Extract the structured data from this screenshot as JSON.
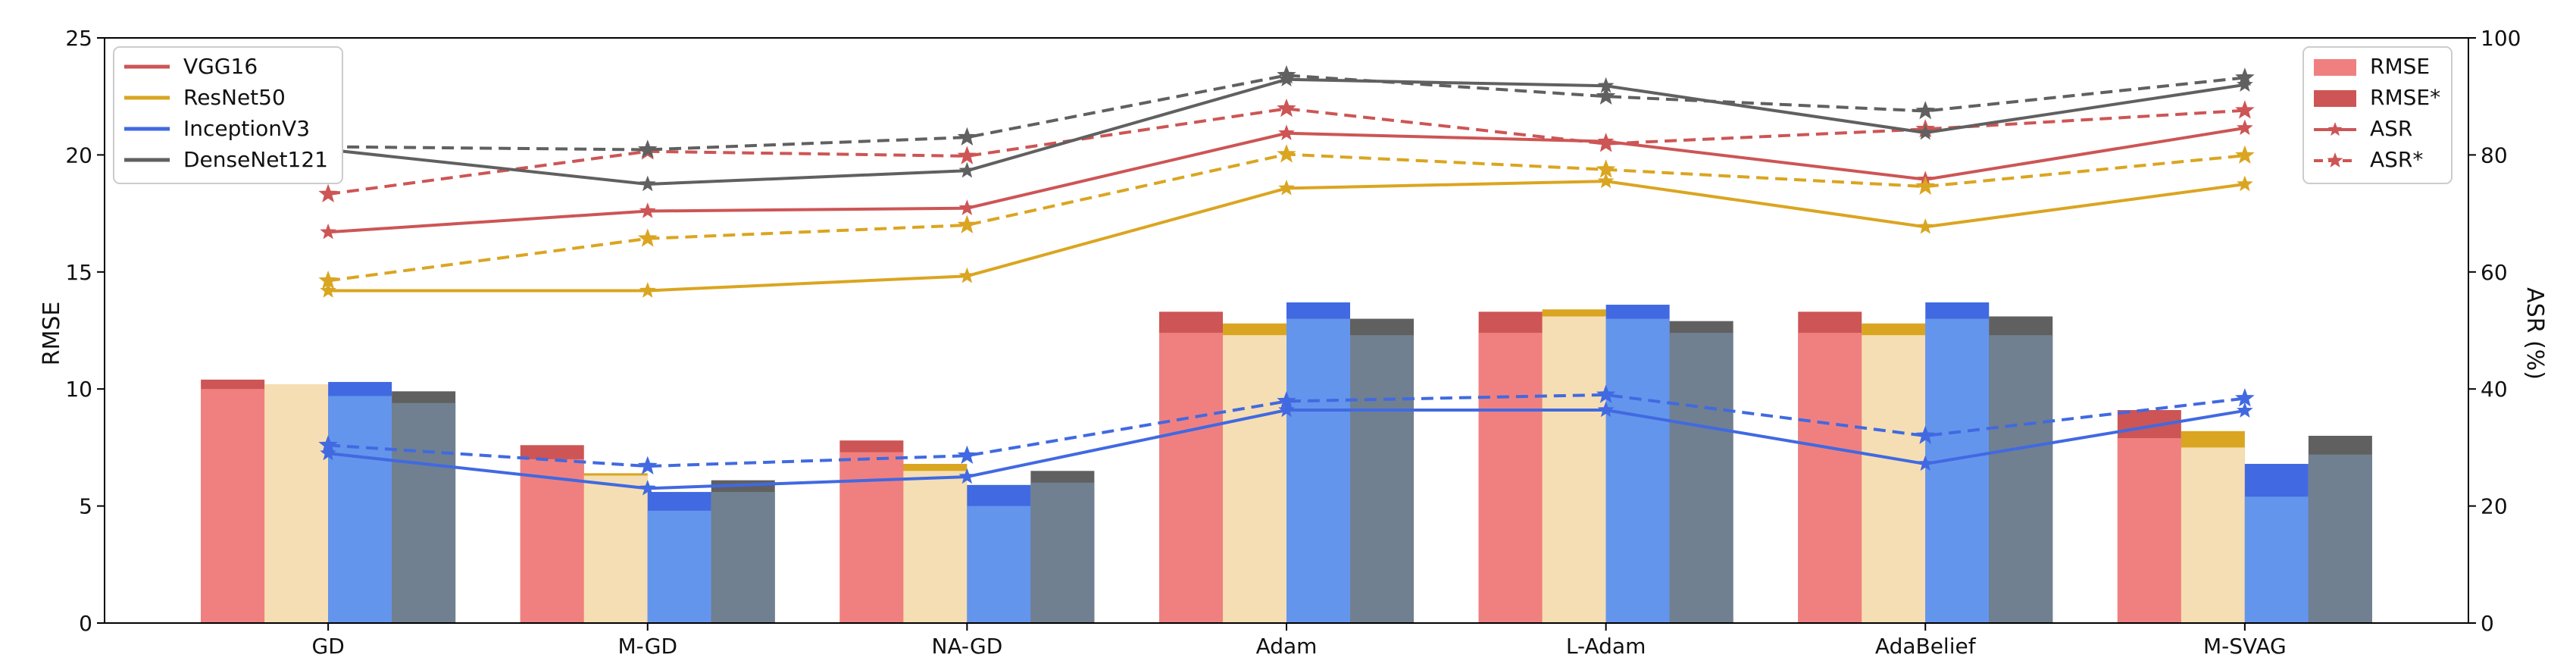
{
  "chart_data": {
    "type": "bar",
    "categories": [
      "GD",
      "M-GD",
      "NA-GD",
      "Adam",
      "L-Adam",
      "AdaBelief",
      "M-SVAG"
    ],
    "ylabel_left": "RMSE",
    "ylabel_right": "ASR (%)",
    "ylim_left": [
      0,
      25
    ],
    "ylim_right": [
      0,
      100
    ],
    "yticks_left": [
      "0",
      "5",
      "10",
      "15",
      "20",
      "25"
    ],
    "yticks_right": [
      "0",
      "20",
      "40",
      "60",
      "80",
      "100"
    ],
    "grid": false,
    "models": [
      {
        "name": "VGG16",
        "color": "#cd5555",
        "light": "#f08080"
      },
      {
        "name": "ResNet50",
        "color": "#daa520",
        "light": "#f5deb3"
      },
      {
        "name": "InceptionV3",
        "color": "#4169e1",
        "light": "#6495ed"
      },
      {
        "name": "DenseNet121",
        "color": "#606060",
        "light": "#708090"
      }
    ],
    "rmse": [
      [
        10.0,
        7.0,
        7.3,
        12.4,
        12.4,
        12.4,
        7.9
      ],
      [
        10.2,
        6.3,
        6.5,
        12.3,
        13.1,
        12.3,
        7.5
      ],
      [
        9.7,
        4.8,
        5.0,
        13.0,
        13.0,
        13.0,
        5.4
      ],
      [
        9.4,
        5.6,
        6.0,
        12.3,
        12.4,
        12.3,
        7.2
      ]
    ],
    "rmse_star": [
      [
        10.4,
        7.6,
        7.8,
        13.3,
        13.3,
        13.3,
        9.1
      ],
      [
        10.2,
        6.4,
        6.8,
        12.8,
        13.4,
        12.8,
        8.2
      ],
      [
        10.3,
        5.6,
        5.9,
        13.7,
        13.6,
        13.7,
        6.8
      ],
      [
        9.9,
        6.1,
        6.5,
        13.0,
        12.9,
        13.1,
        8.0
      ]
    ],
    "asr": [
      [
        66.8,
        70.4,
        70.9,
        83.7,
        82.3,
        75.8,
        84.6
      ],
      [
        56.8,
        56.8,
        59.3,
        74.3,
        75.5,
        67.7,
        75.0
      ],
      [
        29.0,
        23.0,
        25.0,
        36.4,
        36.4,
        27.2,
        36.3
      ],
      [
        80.9,
        75.0,
        77.3,
        92.9,
        91.8,
        83.8,
        92.0
      ]
    ],
    "asr_star": [
      [
        73.3,
        80.6,
        79.8,
        87.9,
        81.9,
        84.4,
        87.6
      ],
      [
        58.5,
        65.7,
        68.0,
        80.1,
        77.5,
        74.6,
        79.9
      ],
      [
        30.4,
        26.8,
        28.6,
        37.9,
        39.0,
        32.0,
        38.4
      ],
      [
        81.4,
        80.9,
        83.0,
        93.6,
        90.0,
        87.5,
        93.2
      ]
    ],
    "legend_left": {
      "placement": "top-left",
      "entries": [
        "VGG16",
        "ResNet50",
        "InceptionV3",
        "DenseNet121"
      ]
    },
    "legend_right": {
      "placement": "top-right",
      "entries": [
        "RMSE",
        "RMSE*",
        "ASR",
        "ASR*"
      ]
    }
  }
}
